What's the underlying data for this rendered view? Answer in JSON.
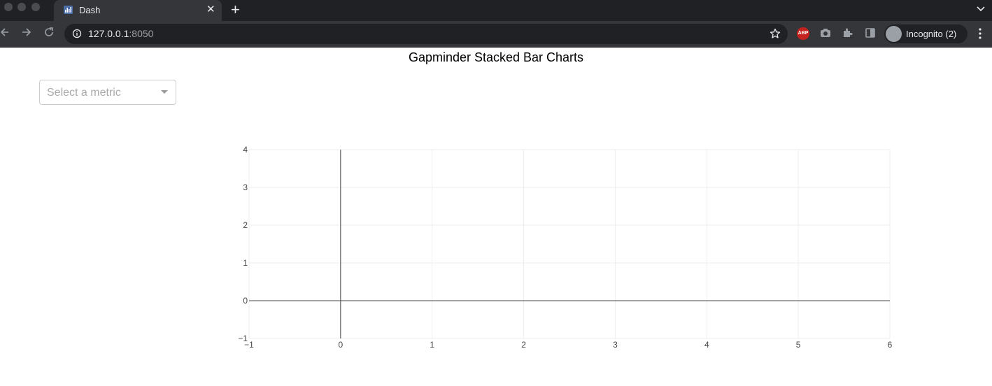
{
  "browser": {
    "tab": {
      "title": "Dash",
      "close_glyph": "✕"
    },
    "new_tab_glyph": "+",
    "tab_list_glyph": "⌄",
    "address": {
      "host": "127.0.0.1",
      "port": ":8050"
    },
    "abp_label": "ABP",
    "profile_label": "Incognito (2)",
    "menu_glyph": "⋮"
  },
  "page": {
    "title": "Gapminder Stacked Bar Charts",
    "dropdown": {
      "placeholder": "Select a metric"
    }
  },
  "chart_data": {
    "type": "bar",
    "title": "",
    "series": [],
    "xlim": [
      -1,
      6
    ],
    "ylim": [
      -1,
      4
    ],
    "x_ticks": [
      "−1",
      "0",
      "1",
      "2",
      "3",
      "4",
      "5",
      "6"
    ],
    "y_ticks": [
      "−1",
      "0",
      "1",
      "2",
      "3",
      "4"
    ],
    "grid": true,
    "zero_lines": true
  }
}
